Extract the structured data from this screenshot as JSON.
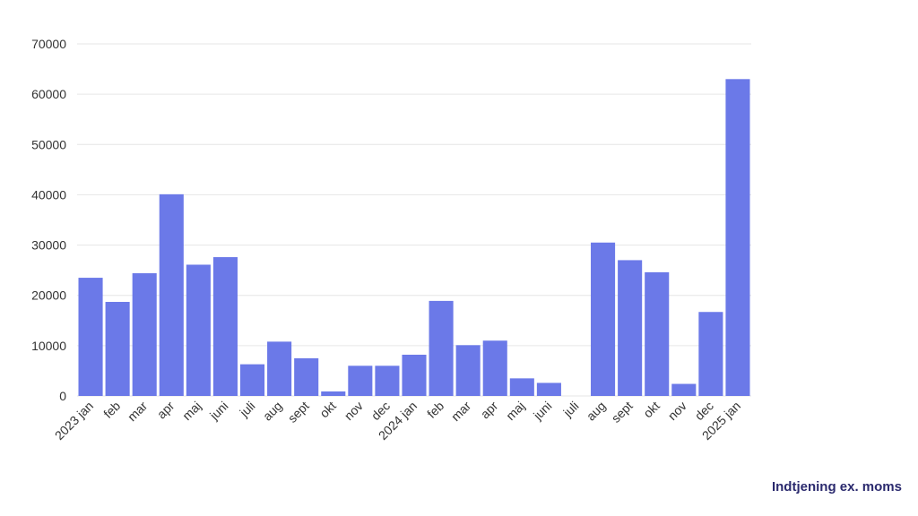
{
  "chart_data": {
    "type": "bar",
    "categories": [
      "2023 jan",
      "feb",
      "mar",
      "apr",
      "maj",
      "juni",
      "juli",
      "aug",
      "sept",
      "okt",
      "nov",
      "dec",
      "2024 jan",
      "feb",
      "mar",
      "apr",
      "maj",
      "juni",
      "juli",
      "aug",
      "sept",
      "okt",
      "nov",
      "dec",
      "2025 jan"
    ],
    "values": [
      23500,
      18700,
      24400,
      40100,
      26100,
      27600,
      6300,
      10800,
      7500,
      900,
      6000,
      6000,
      8200,
      18900,
      10100,
      11000,
      3500,
      2600,
      0,
      30500,
      27000,
      24600,
      2400,
      16700,
      63000
    ],
    "ylim": [
      0,
      70000
    ],
    "yticks": [
      0,
      10000,
      20000,
      30000,
      40000,
      50000,
      60000,
      70000
    ],
    "grid": true,
    "legend": "none",
    "caption": "Indtjening ex. moms",
    "colors": {
      "bar": "#6b79e8",
      "caption": "#2b2a6e"
    }
  }
}
